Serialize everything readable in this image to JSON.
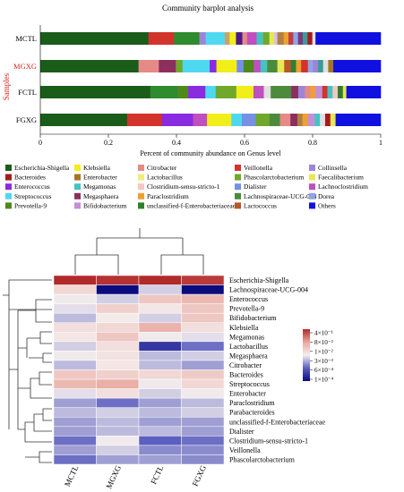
{
  "barplot": {
    "title": "Community barplot analysis",
    "ylabel": "Samples",
    "xlabel": "Percent of community abundance on Genus level",
    "xticks": [
      "0",
      "0.2",
      "0.4",
      "0.6",
      "0.8",
      "1"
    ],
    "xlim": [
      0,
      1
    ]
  },
  "legend_items": [
    {
      "name": "Escherichia-Shigella",
      "color": "#1a5d1a"
    },
    {
      "name": "Klebsiella",
      "color": "#f2ee1a"
    },
    {
      "name": "Citrobacter",
      "color": "#e58a86"
    },
    {
      "name": "Veillonella",
      "color": "#d2342c"
    },
    {
      "name": "Collinsella",
      "color": "#9d85d6"
    },
    {
      "name": "Bacteroides",
      "color": "#a61b1b"
    },
    {
      "name": "Enterobacter",
      "color": "#a5761f"
    },
    {
      "name": "Lactobacillus",
      "color": "#f0ed7c"
    },
    {
      "name": "Phascolarctobacterium",
      "color": "#6fa82b"
    },
    {
      "name": "Faecalibacterium",
      "color": "#e8e852"
    },
    {
      "name": "Enterococcus",
      "color": "#8a2be2"
    },
    {
      "name": "Megamonas",
      "color": "#45c3c3"
    },
    {
      "name": "Clostridium-sensu-stricto-1",
      "color": "#f3c7c3"
    },
    {
      "name": "Dialister",
      "color": "#7590e6"
    },
    {
      "name": "Lachnoclostridium",
      "color": "#c04fc0"
    },
    {
      "name": "Streptococcus",
      "color": "#4fd9f0"
    },
    {
      "name": "Megasphaera",
      "color": "#8c2f5f"
    },
    {
      "name": "Paraclostridium",
      "color": "#f0a033"
    },
    {
      "name": "Lachnospiraceae-UCG-004",
      "color": "#4c8a3c"
    },
    {
      "name": "Dorea",
      "color": "#8fa4e6"
    },
    {
      "name": "Prevotella-9",
      "color": "#4d8a1a"
    },
    {
      "name": "Bifidobacterium",
      "color": "#c48fd6"
    },
    {
      "name": "unclassified-f-Enterobacteriaceae",
      "color": "#2f7f2f"
    },
    {
      "name": "Lactococcus",
      "color": "#b8572a"
    },
    {
      "name": "Others",
      "color": "#1010e0"
    }
  ],
  "chart_data": [
    {
      "type": "bar",
      "orientation": "horizontal-stacked",
      "title": "Community barplot analysis",
      "xlabel": "Percent of community abundance on Genus level",
      "ylabel": "Samples",
      "xlim": [
        0,
        1
      ],
      "categories": [
        "MCTL",
        "MGXG",
        "FCTL",
        "FGXG"
      ],
      "series": [
        {
          "name": "Escherichia-Shigella",
          "values": [
            0.34,
            0.29,
            0.32,
            0.25
          ]
        },
        {
          "name": "Klebsiella",
          "values": [
            0.0,
            0.0,
            0.0,
            0.0
          ]
        },
        {
          "name": "Citrobacter",
          "values": [
            0.0,
            0.06,
            0.0,
            0.0
          ]
        },
        {
          "name": "Veillonella",
          "values": [
            0.0,
            0.0,
            0.0,
            0.0
          ]
        },
        {
          "name": "Collinsella",
          "values": [
            0.01,
            0.0,
            0.0,
            0.01
          ]
        },
        {
          "name": "Bacteroides",
          "values": [
            0.05,
            0.01,
            0.02,
            0.03
          ]
        },
        {
          "name": "Enterobacter",
          "values": [
            0.0,
            0.02,
            0.0,
            0.0
          ]
        },
        {
          "name": "Lactobacillus",
          "values": [
            0.0,
            0.0,
            0.07,
            0.0
          ]
        },
        {
          "name": "Phascolarctobacterium",
          "values": [
            0.0,
            0.0,
            0.0,
            0.0
          ]
        },
        {
          "name": "Faecalibacterium",
          "values": [
            0.0,
            0.0,
            0.0,
            0.0
          ]
        },
        {
          "name": "Enterococcus",
          "values": [
            0.04,
            0.0,
            0.02,
            0.09
          ]
        },
        {
          "name": "Megamonas",
          "values": [
            0.01,
            0.08,
            0.01,
            0.01
          ]
        },
        {
          "name": "Clostridium-sensu-stricto-1",
          "values": [
            0.0,
            0.0,
            0.0,
            0.0
          ]
        },
        {
          "name": "Dialister",
          "values": [
            0.0,
            0.0,
            0.0,
            0.0
          ]
        },
        {
          "name": "Lachnoclostridium",
          "values": [
            0.0,
            0.0,
            0.0,
            0.0
          ]
        },
        {
          "name": "Streptococcus",
          "values": [
            0.02,
            0.02,
            0.0,
            0.01
          ]
        },
        {
          "name": "Megasphaera",
          "values": [
            0.0,
            0.0,
            0.0,
            0.0
          ]
        },
        {
          "name": "Paraclostridium",
          "values": [
            0.0,
            0.0,
            0.0,
            0.0
          ]
        },
        {
          "name": "Lachnospiraceae-UCG-004",
          "values": [
            0.18,
            0.05,
            0.08,
            0.11
          ]
        },
        {
          "name": "Dorea",
          "values": [
            0.0,
            0.0,
            0.0,
            0.0
          ]
        },
        {
          "name": "Prevotella-9",
          "values": [
            0.04,
            0.06,
            0.05,
            0.03
          ]
        },
        {
          "name": "Bifidobacterium",
          "values": [
            0.03,
            0.02,
            0.04,
            0.05
          ]
        },
        {
          "name": "unclassified-f-Enterobacteriaceae",
          "values": [
            0.0,
            0.0,
            0.0,
            0.0
          ]
        },
        {
          "name": "Lactococcus",
          "values": [
            0.0,
            0.0,
            0.0,
            0.0
          ]
        },
        {
          "name": "Others",
          "values": [
            0.14,
            0.11,
            0.11,
            0.13
          ]
        }
      ],
      "segments": [
        [
          [
            "#1a5d1a",
            0.34
          ],
          [
            "#d2342c",
            0.08
          ],
          [
            "#2e8b2e",
            0.08
          ],
          [
            "#9d85d6",
            0.02
          ],
          [
            "#4fd9f0",
            0.06
          ],
          [
            "#c8a26a",
            0.015
          ],
          [
            "#f2ee1a",
            0.02
          ],
          [
            "#4a1a8a",
            0.02
          ],
          [
            "#e58a86",
            0.015
          ],
          [
            "#c04fc0",
            0.03
          ],
          [
            "#45c3c3",
            0.02
          ],
          [
            "#6fa82b",
            0.02
          ],
          [
            "#e8e852",
            0.015
          ],
          [
            "#d4c0f0",
            0.01
          ],
          [
            "#b08040",
            0.02
          ],
          [
            "#f0a033",
            0.015
          ],
          [
            "#c04040",
            0.015
          ],
          [
            "#8fa4e6",
            0.015
          ],
          [
            "#7a3a7a",
            0.015
          ],
          [
            "#3c9a9a",
            0.015
          ],
          [
            "#a61b1b",
            0.015
          ],
          [
            "#e0e0e0",
            0.01
          ],
          [
            "#1010e0",
            0.205
          ]
        ],
        [
          [
            "#1a5d1a",
            0.29
          ],
          [
            "#e58a86",
            0.06
          ],
          [
            "#8c2f5f",
            0.05
          ],
          [
            "#6fa82b",
            0.02
          ],
          [
            "#4fd9f0",
            0.08
          ],
          [
            "#8a2be2",
            0.02
          ],
          [
            "#f2ee1a",
            0.06
          ],
          [
            "#7590e6",
            0.02
          ],
          [
            "#4d8a1a",
            0.03
          ],
          [
            "#c04fc0",
            0.02
          ],
          [
            "#45c3c3",
            0.02
          ],
          [
            "#4c8a3c",
            0.03
          ],
          [
            "#e8e852",
            0.02
          ],
          [
            "#b8572a",
            0.02
          ],
          [
            "#2f7f2f",
            0.015
          ],
          [
            "#f0a033",
            0.015
          ],
          [
            "#d2342c",
            0.02
          ],
          [
            "#8fa4e6",
            0.015
          ],
          [
            "#9d85d6",
            0.015
          ],
          [
            "#3c9a9a",
            0.015
          ],
          [
            "#e0e0e0",
            0.015
          ],
          [
            "#a5761f",
            0.015
          ],
          [
            "#1010e0",
            0.14
          ]
        ],
        [
          [
            "#1a5d1a",
            0.32
          ],
          [
            "#2e8b2e",
            0.08
          ],
          [
            "#4d8a1a",
            0.03
          ],
          [
            "#8a2be2",
            0.05
          ],
          [
            "#4fd9f0",
            0.03
          ],
          [
            "#6fa82b",
            0.06
          ],
          [
            "#f2ee1a",
            0.05
          ],
          [
            "#c04fc0",
            0.03
          ],
          [
            "#e0e0e0",
            0.02
          ],
          [
            "#4c8a3c",
            0.06
          ],
          [
            "#8c2f5f",
            0.02
          ],
          [
            "#9d85d6",
            0.02
          ],
          [
            "#e58a86",
            0.015
          ],
          [
            "#f0a033",
            0.015
          ],
          [
            "#c48fd6",
            0.02
          ],
          [
            "#d2342c",
            0.015
          ],
          [
            "#45c3c3",
            0.015
          ],
          [
            "#f3c7c3",
            0.015
          ],
          [
            "#2f7f2f",
            0.015
          ],
          [
            "#e8e852",
            0.01
          ],
          [
            "#1010e0",
            0.1
          ]
        ],
        [
          [
            "#1a5d1a",
            0.25
          ],
          [
            "#d2342c",
            0.1
          ],
          [
            "#8a2be2",
            0.09
          ],
          [
            "#c04fc0",
            0.04
          ],
          [
            "#f2ee1a",
            0.07
          ],
          [
            "#4fd9f0",
            0.03
          ],
          [
            "#7590e6",
            0.04
          ],
          [
            "#6fa82b",
            0.04
          ],
          [
            "#4c8a3c",
            0.03
          ],
          [
            "#e58a86",
            0.03
          ],
          [
            "#8c2f5f",
            0.02
          ],
          [
            "#b08040",
            0.015
          ],
          [
            "#f0a033",
            0.015
          ],
          [
            "#c48fd6",
            0.02
          ],
          [
            "#45c3c3",
            0.015
          ],
          [
            "#e0e0e0",
            0.015
          ],
          [
            "#a61b1b",
            0.015
          ],
          [
            "#e8e852",
            0.015
          ],
          [
            "#1010e0",
            0.13
          ]
        ]
      ]
    },
    {
      "type": "heatmap",
      "columns": [
        "MCTL",
        "MGXG",
        "FCTL",
        "FGXG"
      ],
      "rows": [
        "Escherichia-Shigella",
        "Lachnospiraceae-UCG-004",
        "Enterococcus",
        "Prevotella-9",
        "Bifidobacterium",
        "Klebsiella",
        "Megamonas",
        "Lactobacillus",
        "Megasphaera",
        "Citrobacter",
        "Bacteroides",
        "Streptococcus",
        "Enterobacter",
        "Paraclostridium",
        "Parabacteroides",
        "unclassified-f-Enterobacteriaceae",
        "Dialister",
        "Clostridium-sensu-stricto-1",
        "Veillonella",
        "Phascolarctobacterium"
      ],
      "values": [
        [
          0.4,
          0.35,
          0.4,
          0.3
        ],
        [
          0.012,
          0.0001,
          0.004,
          0.0001
        ],
        [
          0.006,
          0.004,
          0.02,
          0.03
        ],
        [
          0.005,
          0.015,
          0.008,
          0.02
        ],
        [
          0.003,
          0.007,
          0.004,
          0.02
        ],
        [
          0.01,
          0.012,
          0.035,
          0.01
        ],
        [
          0.008,
          0.02,
          0.006,
          0.005
        ],
        [
          0.004,
          0.01,
          0.0003,
          0.001
        ],
        [
          0.006,
          0.009,
          0.003,
          0.004
        ],
        [
          0.003,
          0.008,
          0.003,
          0.002
        ],
        [
          0.02,
          0.015,
          0.012,
          0.018
        ],
        [
          0.03,
          0.04,
          0.006,
          0.012
        ],
        [
          0.005,
          0.01,
          0.004,
          0.006
        ],
        [
          0.002,
          0.001,
          0.002,
          0.003
        ],
        [
          0.003,
          0.004,
          0.003,
          0.004
        ],
        [
          0.002,
          0.003,
          0.002,
          0.002
        ],
        [
          0.002,
          0.003,
          0.003,
          0.002
        ],
        [
          0.001,
          0.006,
          0.0008,
          0.001
        ],
        [
          0.002,
          0.004,
          0.0015,
          0.0015
        ],
        [
          0.001,
          0.002,
          0.002,
          0.0015
        ]
      ],
      "scale": "log",
      "colorbar_ticks": [
        "4×10⁻¹",
        "8×10⁻²",
        "1×10⁻²",
        "3×10⁻³",
        "6×10⁻⁴",
        "1×10⁻⁴"
      ],
      "colorbar_colors": [
        "#b2292a",
        "#e9a79e",
        "#f4eeee",
        "#5b5fbf",
        "#0b0b80"
      ]
    }
  ]
}
